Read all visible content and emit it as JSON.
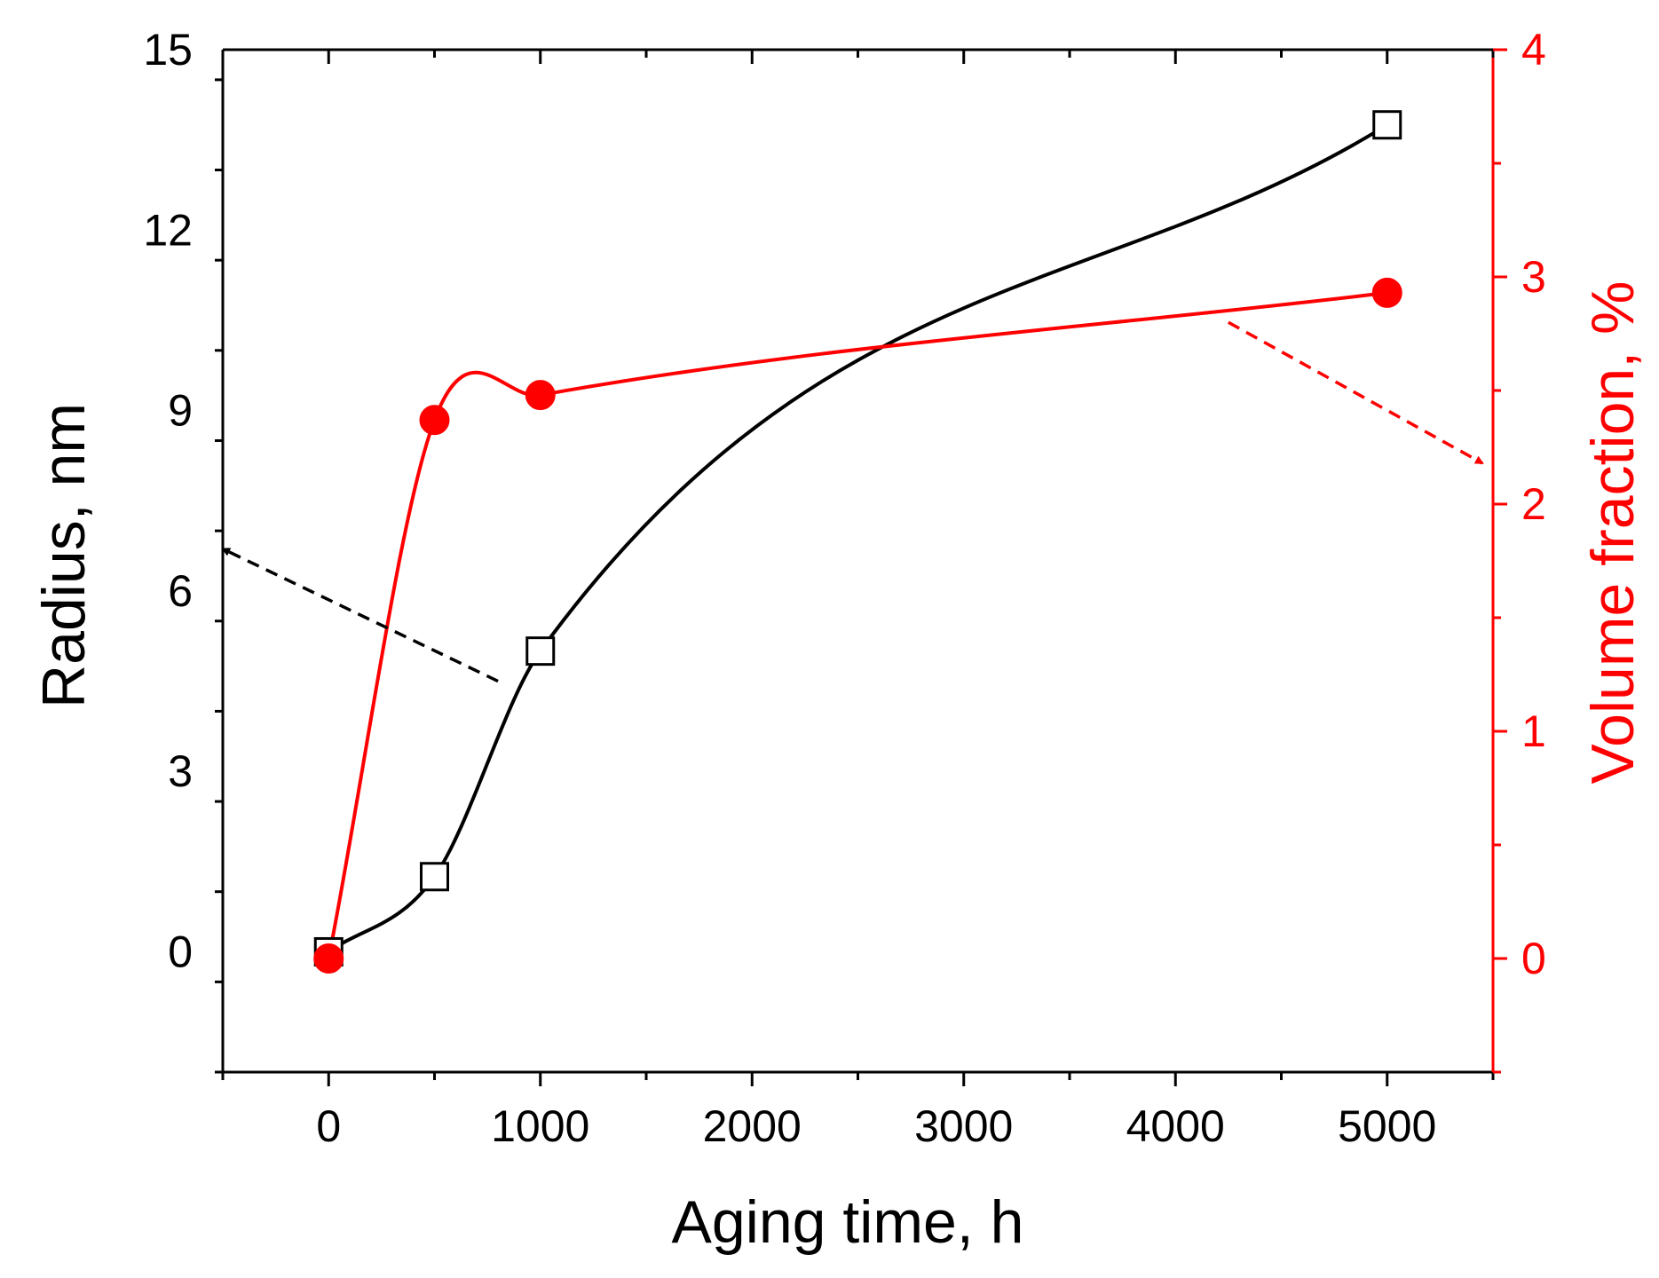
{
  "chart_data": {
    "type": "line",
    "title": "",
    "xlabel": "Aging time, h",
    "ylabel": "Radius, nm",
    "y2label": "Volume fraction, %",
    "xlim": [
      -500,
      5500
    ],
    "ylim": [
      -2,
      15
    ],
    "y2lim": [
      -0.5,
      4
    ],
    "x_ticks": [
      0,
      1000,
      2000,
      3000,
      4000,
      5000
    ],
    "x_tick_labels": [
      "0",
      "1000",
      "2000",
      "3000",
      "4000",
      "5000"
    ],
    "y_ticks": [
      0,
      3,
      6,
      9,
      12,
      15
    ],
    "y_tick_labels": [
      "0",
      "3",
      "6",
      "9",
      "12",
      "15"
    ],
    "y2_ticks": [
      0,
      1,
      2,
      3,
      4
    ],
    "y2_tick_labels": [
      "0",
      "1",
      "2",
      "3",
      "4"
    ],
    "series": [
      {
        "name": "Radius",
        "axis": "left",
        "marker": "open-square",
        "color": "#000000",
        "x": [
          0,
          500,
          1000,
          5000
        ],
        "values": [
          0.0,
          1.25,
          5.0,
          13.75
        ]
      },
      {
        "name": "Volume fraction",
        "axis": "right",
        "marker": "filled-circle",
        "color": "#ff0000",
        "x": [
          0,
          500,
          1000,
          5000
        ],
        "values": [
          0.0,
          2.37,
          2.48,
          2.93
        ]
      }
    ],
    "annotations": [
      {
        "type": "dashed-arrow",
        "color": "#000000",
        "from": [
          800,
          4.5
        ],
        "to": [
          -500,
          6.7
        ],
        "axis": "left",
        "meaning": "radius series uses left axis"
      },
      {
        "type": "dashed-arrow",
        "color": "#ff0000",
        "from": [
          4250,
          2.8
        ],
        "to": [
          5450,
          2.18
        ],
        "axis": "right",
        "meaning": "volume fraction series uses right axis"
      }
    ]
  },
  "colors": {
    "axis_left": "#000000",
    "axis_right": "#ff0000"
  }
}
